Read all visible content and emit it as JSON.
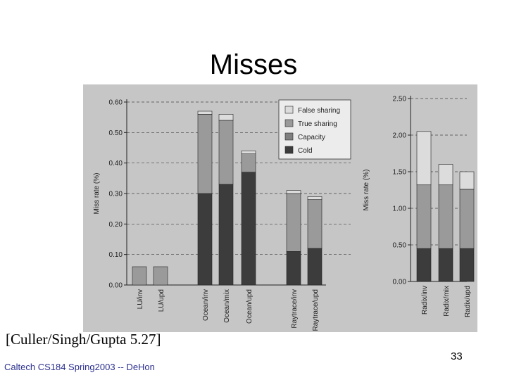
{
  "slide": {
    "title": "Misses",
    "citation": "[Culler/Singh/Gupta 5.27]",
    "footer": "Caltech CS184 Spring2003 -- DeHon",
    "page_number": "33"
  },
  "colors": {
    "false_sharing": "#dcdcdc",
    "true_sharing": "#9a9a9a",
    "capacity": "#808080",
    "cold": "#3c3c3c",
    "scan_bg": "#c6c6c6"
  },
  "chart_data": [
    {
      "type": "bar",
      "stacked": true,
      "ylabel": "Miss rate (%)",
      "ylim": [
        0,
        0.6
      ],
      "yticks": [
        "0.00",
        "0.10",
        "0.20",
        "0.30",
        "0.40",
        "0.50",
        "0.60"
      ],
      "grid": "dashed horizontal",
      "categories": [
        "LU/inv",
        "LU/upd",
        "Ocean/inv",
        "Ocean/mix",
        "Ocean/upd",
        "Raytrace/inv",
        "Raytrace/upd"
      ],
      "series": [
        {
          "name": "Cold",
          "values": [
            0.0,
            0.0,
            0.3,
            0.33,
            0.37,
            0.11,
            0.12
          ]
        },
        {
          "name": "Capacity",
          "values": [
            0.0,
            0.0,
            0.0,
            0.0,
            0.0,
            0.0,
            0.0
          ]
        },
        {
          "name": "True sharing",
          "values": [
            0.06,
            0.06,
            0.26,
            0.21,
            0.06,
            0.19,
            0.16
          ]
        },
        {
          "name": "False sharing",
          "values": [
            0.0,
            0.0,
            0.01,
            0.02,
            0.01,
            0.01,
            0.01
          ]
        }
      ]
    },
    {
      "type": "bar",
      "stacked": true,
      "ylabel": "Miss rate (%)",
      "ylim": [
        0,
        2.5
      ],
      "yticks": [
        "0.00",
        "0.50",
        "1.00",
        "1.50",
        "2.00",
        "2.50"
      ],
      "grid": "dashed horizontal",
      "legend_position": "top",
      "legend": [
        "False sharing",
        "True sharing",
        "Capacity",
        "Cold"
      ],
      "categories": [
        "Radix/inv",
        "Radix/mix",
        "Radix/upd"
      ],
      "series": [
        {
          "name": "Cold",
          "values": [
            0.45,
            0.45,
            0.45
          ]
        },
        {
          "name": "Capacity",
          "values": [
            0.0,
            0.0,
            0.0
          ]
        },
        {
          "name": "True sharing",
          "values": [
            0.87,
            0.87,
            0.81
          ]
        },
        {
          "name": "False sharing",
          "values": [
            0.73,
            0.28,
            0.24
          ]
        }
      ]
    }
  ]
}
